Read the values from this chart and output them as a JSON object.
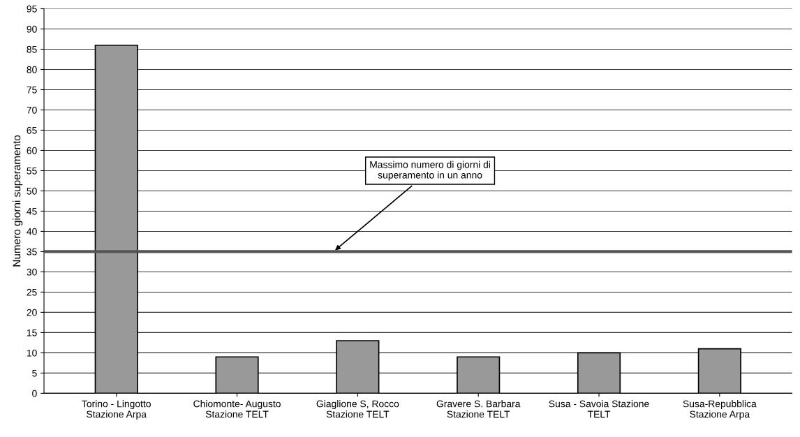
{
  "chart_data": {
    "type": "bar",
    "ylabel": "Numero giorni superamento",
    "categories": [
      "Torino - Lingotto\nStazione Arpa",
      "Chiomonte- Augusto\nStazione TELT",
      "Giaglione S, Rocco\nStazione TELT",
      "Gravere S. Barbara\nStazione TELT",
      "Susa - Savoia Stazione\nTELT",
      "Susa-Repubblica\nStazione Arpa"
    ],
    "values": [
      86,
      9,
      13,
      9,
      10,
      11
    ],
    "color": "#999999",
    "ylim": [
      0,
      95
    ],
    "yticks": [
      0,
      5,
      10,
      15,
      20,
      25,
      30,
      35,
      40,
      45,
      50,
      55,
      60,
      65,
      70,
      75,
      80,
      85,
      90,
      95
    ],
    "grid": "y",
    "legend": false,
    "ref_lines": [
      {
        "axis": "y",
        "value": 35,
        "label": "Massimo numero di giorni di\nsuperamento in un anno",
        "color": "#555555"
      }
    ]
  }
}
